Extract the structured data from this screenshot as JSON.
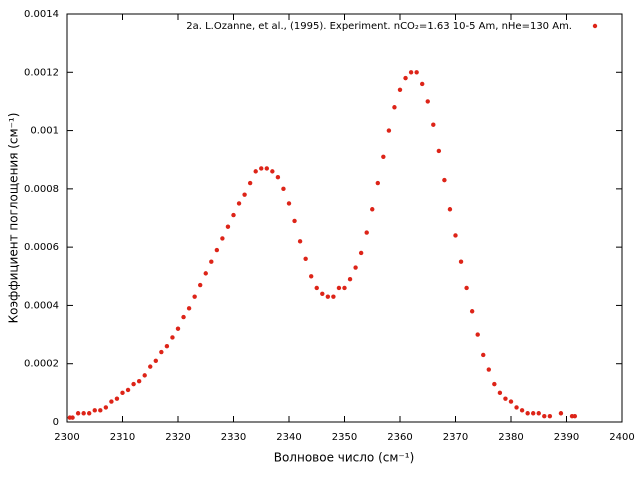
{
  "chart_data": {
    "type": "scatter",
    "xlabel": "Волновое число (см⁻¹)",
    "ylabel": "Коэффициент поглощения (см⁻¹)",
    "xlim": [
      2300,
      2400
    ],
    "xticks": [
      2300,
      2310,
      2320,
      2330,
      2340,
      2350,
      2360,
      2370,
      2380,
      2390,
      2400
    ],
    "ylim": [
      0,
      0.0014
    ],
    "yticks": [
      0,
      0.0002,
      0.0004,
      0.0006,
      0.0008,
      0.001,
      0.0012,
      0.0014
    ],
    "legend": "upper right",
    "grid": false,
    "series": [
      {
        "name": "2a. L.Ozanne, et al., (1995). Experiment. nCO₂=1.63 10-5 Am, nHe=130 Am.",
        "color": "#dd2418",
        "x": [
          2300.5,
          2301,
          2302,
          2303,
          2304,
          2305,
          2306,
          2307,
          2308,
          2309,
          2310,
          2311,
          2312,
          2313,
          2314,
          2315,
          2316,
          2317,
          2318,
          2319,
          2320,
          2321,
          2322,
          2323,
          2324,
          2325,
          2326,
          2327,
          2328,
          2329,
          2330,
          2331,
          2332,
          2333,
          2334,
          2335,
          2336,
          2337,
          2338,
          2339,
          2340,
          2341,
          2342,
          2343,
          2344,
          2345,
          2346,
          2347,
          2348,
          2349,
          2350,
          2351,
          2352,
          2353,
          2354,
          2355,
          2356,
          2357,
          2358,
          2359,
          2360,
          2361,
          2362,
          2363,
          2364,
          2365,
          2366,
          2367,
          2368,
          2369,
          2370,
          2371,
          2372,
          2373,
          2374,
          2375,
          2376,
          2377,
          2378,
          2379,
          2380,
          2381,
          2382,
          2383,
          2384,
          2385,
          2386,
          2387,
          2389,
          2391,
          2391.5
        ],
        "values": [
          1.5e-05,
          1.5e-05,
          3e-05,
          3e-05,
          3e-05,
          4e-05,
          4e-05,
          5e-05,
          7e-05,
          8e-05,
          0.0001,
          0.00011,
          0.00013,
          0.00014,
          0.00016,
          0.00019,
          0.00021,
          0.00024,
          0.00026,
          0.00029,
          0.00032,
          0.00036,
          0.00039,
          0.00043,
          0.00047,
          0.00051,
          0.00055,
          0.00059,
          0.00063,
          0.00067,
          0.00071,
          0.00075,
          0.00078,
          0.00082,
          0.00086,
          0.00087,
          0.00087,
          0.00086,
          0.00084,
          0.0008,
          0.00075,
          0.00069,
          0.00062,
          0.00056,
          0.0005,
          0.00046,
          0.00044,
          0.00043,
          0.00043,
          0.00046,
          0.00046,
          0.00049,
          0.00053,
          0.00058,
          0.00065,
          0.00073,
          0.00082,
          0.00091,
          0.001,
          0.00108,
          0.00114,
          0.00118,
          0.0012,
          0.0012,
          0.00116,
          0.0011,
          0.00102,
          0.00093,
          0.00083,
          0.00073,
          0.00064,
          0.00055,
          0.00046,
          0.00038,
          0.0003,
          0.00023,
          0.00018,
          0.00013,
          0.0001,
          8e-05,
          7e-05,
          5e-05,
          4e-05,
          3e-05,
          3e-05,
          3e-05,
          2e-05,
          2e-05,
          3e-05,
          2e-05,
          2e-05
        ]
      }
    ]
  }
}
